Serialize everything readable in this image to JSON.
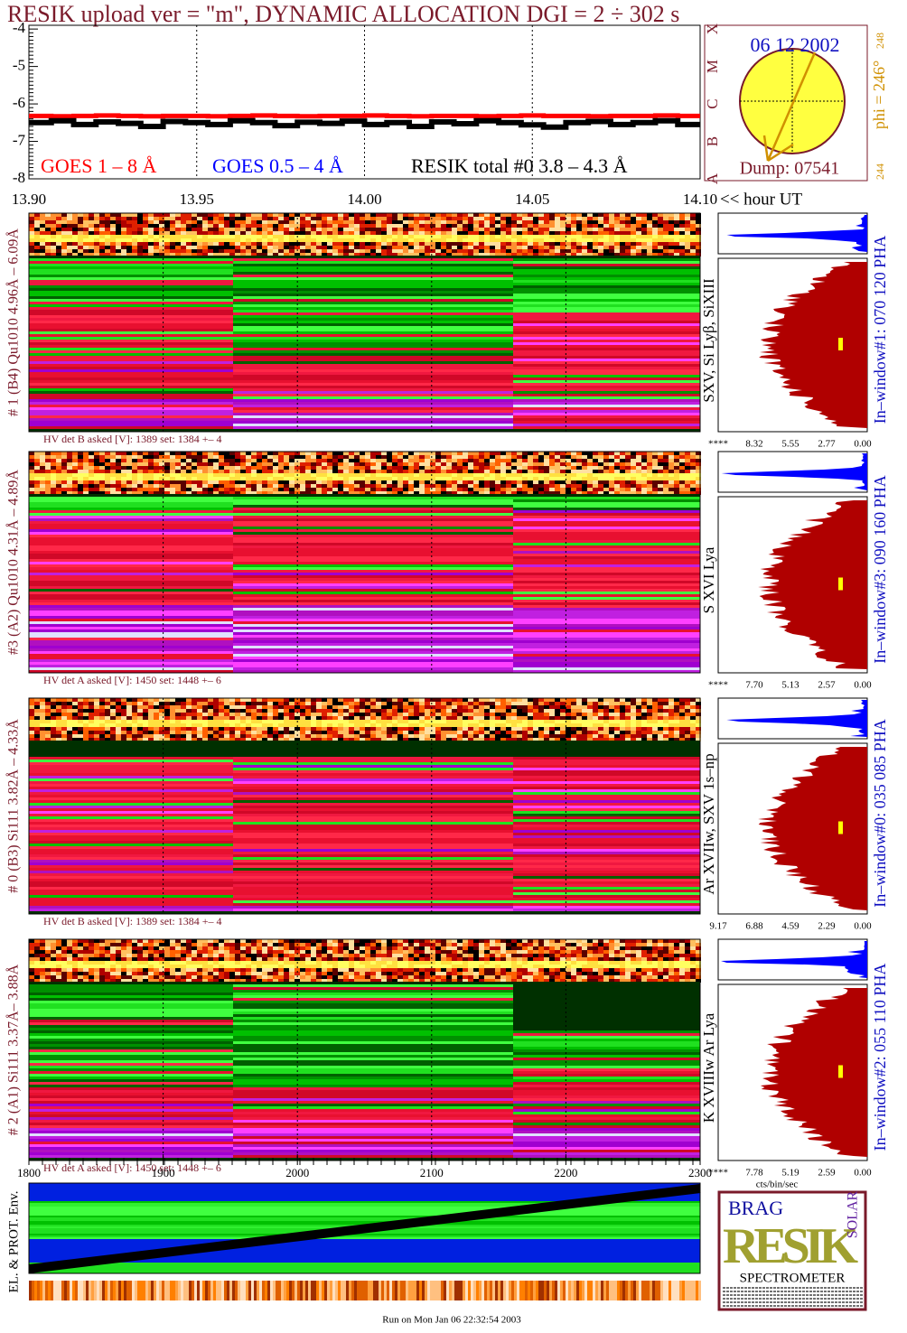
{
  "title": "RESIK upload ver = \"m\", DYNAMIC ALLOCATION  DGI =   2 ÷ 302 s",
  "goes": {
    "ylim": [
      -8,
      -3.9
    ],
    "yticks": [
      -4,
      -5,
      -6,
      -7,
      -8
    ],
    "xlim": [
      13.9,
      14.1
    ],
    "xticks": [
      {
        "value": 13.9,
        "label": "13.90"
      },
      {
        "value": 13.95,
        "label": "13.95"
      },
      {
        "value": 14.0,
        "label": "14.00"
      },
      {
        "value": 14.05,
        "label": "14.05"
      },
      {
        "value": 14.1,
        "label": "14.10"
      }
    ],
    "x_axis_label": "<< hour UT",
    "series": [
      {
        "name": "GOES 1 – 8 Å",
        "color": "#ff0000",
        "values": [
          -6.32,
          -6.33,
          -6.32,
          -6.31,
          -6.32,
          -6.33,
          -6.32,
          -6.32,
          -6.33,
          -6.32,
          -6.31,
          -6.32,
          -6.33,
          -6.32,
          -6.32,
          -6.31,
          -6.32,
          -6.33,
          -6.32,
          -6.32,
          -6.33,
          -6.32,
          -6.31,
          -6.32,
          -6.32,
          -6.33,
          -6.32,
          -6.32,
          -6.31,
          -6.32
        ]
      },
      {
        "name": "GOES 0.5 – 4 Å",
        "color": "#0000ff",
        "values": [
          null,
          null,
          null,
          null,
          null,
          null,
          null,
          null,
          null,
          null,
          null,
          null,
          null,
          null,
          null,
          null,
          null,
          null,
          null,
          null,
          null,
          null,
          null,
          null,
          null,
          null,
          null,
          null,
          null,
          null
        ]
      },
      {
        "name": "RESIK total #0  3.8 – 4.3 Å",
        "color": "#000000",
        "values": [
          -6.5,
          -6.45,
          -6.55,
          -6.48,
          -6.52,
          -6.6,
          -6.47,
          -6.5,
          -6.55,
          -6.45,
          -6.5,
          -6.58,
          -6.49,
          -6.52,
          -6.46,
          -6.55,
          -6.5,
          -6.6,
          -6.48,
          -6.53,
          -6.45,
          -6.5,
          -6.56,
          -6.62,
          -6.5,
          -6.47,
          -6.55,
          -6.5,
          -6.45,
          -6.55
        ]
      }
    ]
  },
  "sun": {
    "date": "06 12 2002",
    "phi": "phi = 246°",
    "phi_max": "248",
    "phi_min": "244",
    "dump": "Dump: 07541",
    "classes": [
      "X",
      "M",
      "C",
      "B",
      "A"
    ]
  },
  "panels": [
    {
      "label": "# 1 (B4) Qu1010 4.96Å – 6.09Å",
      "lines": "SXV, Si Lyβ, SiXIII",
      "window": "In–window#1:  070 120 PHA",
      "hv": "HV det B asked [V]:  1389 set:  1384  +–   4",
      "hist_ticks": [
        "****",
        "8.32",
        "5.55",
        "2.77",
        "0.00"
      ]
    },
    {
      "label": "#3 (A2) Qu1010  4.31Å – 4.89Å",
      "lines": "S XVI Lya",
      "window": "In–window#3:  090 160 PHA",
      "hv": "HV det A asked [V]:  1450 set:  1448  +–    6",
      "hist_ticks": [
        "****",
        "7.70",
        "5.13",
        "2.57",
        "0.00"
      ]
    },
    {
      "label": "# 0 (B3) Si111  3.82Å – 4.33Å",
      "lines": "Ar XVIIw,  SXV 1s–np",
      "window": "In–window#0:  035 085 PHA",
      "hv": "HV det B asked [V]:  1389 set:  1384  +–   4",
      "hist_ticks": [
        "9.17",
        "6.88",
        "4.59",
        "2.29",
        "0.00"
      ]
    },
    {
      "label": "# 2 (A1) Si111  3.37Å– 3.88Å",
      "lines": "K XVIIIw  Ar Lya",
      "window": "In–window#2:  055 110 PHA",
      "hv": "HV det A asked [V]:  1450 set:  1448  +–    6",
      "hist_ticks": [
        "****",
        "7.78",
        "5.19",
        "2.59",
        "0.00"
      ]
    }
  ],
  "bottom": {
    "xlim": [
      1800,
      2300
    ],
    "xticks": [
      1800,
      1900,
      2000,
      2100,
      2200,
      2300
    ],
    "y_label": "EL. & PROT. Env.",
    "hist_unit": "cts/bin/sec"
  },
  "logo": {
    "brag": "BRAG",
    "resik": "RESIK",
    "solar": "SOLAR",
    "name": "SPECTROMETER"
  },
  "footer": "Run on Mon Jan 06 22:32:54 2003"
}
